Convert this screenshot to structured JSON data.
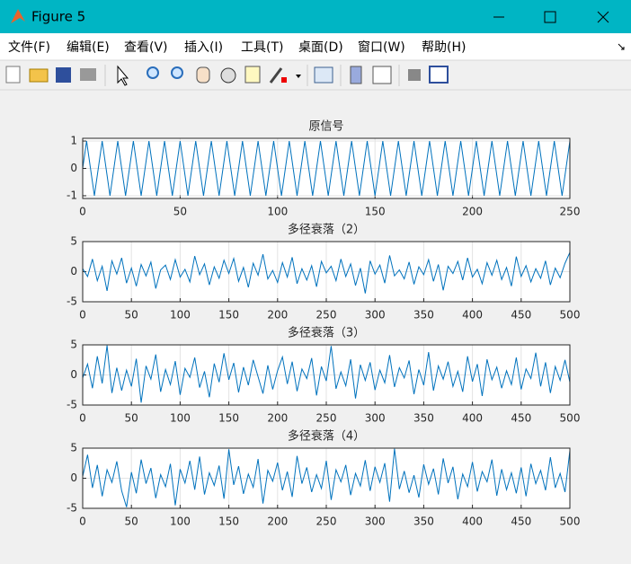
{
  "window": {
    "title": "Figure 5",
    "menu": [
      "文件(F)",
      "编辑(E)",
      "查看(V)",
      "插入(I)",
      "工具(T)",
      "桌面(D)",
      "窗口(W)",
      "帮助(H)"
    ]
  },
  "chart_data": [
    {
      "type": "line",
      "title": "原信号",
      "x": [
        0,
        2,
        4,
        6,
        8,
        10,
        12,
        14,
        16,
        18,
        20,
        22,
        24,
        26,
        28,
        30,
        32,
        34,
        36,
        38,
        40,
        42,
        44,
        46,
        48,
        50,
        52,
        54,
        56,
        58,
        60,
        62,
        64,
        66,
        68,
        70,
        72,
        74,
        76,
        78,
        80,
        82,
        84,
        86,
        88,
        90,
        92,
        94,
        96,
        98,
        100,
        102,
        104,
        106,
        108,
        110,
        112,
        114,
        116,
        118,
        120,
        122,
        124,
        126,
        128,
        130,
        132,
        134,
        136,
        138,
        140,
        142,
        144,
        146,
        148,
        150,
        152,
        154,
        156,
        158,
        160,
        162,
        164,
        166,
        168,
        170,
        172,
        174,
        176,
        178,
        180,
        182,
        184,
        186,
        188,
        190,
        192,
        194,
        196,
        198,
        200,
        202,
        204,
        206,
        208,
        210,
        212,
        214,
        216,
        218,
        220,
        222,
        224,
        226,
        228,
        230,
        232,
        234,
        236,
        238,
        240,
        242,
        244,
        246,
        248,
        250
      ],
      "series": [
        {
          "color": "#0072bd",
          "values": [
            0,
            1,
            0,
            -1,
            0,
            1,
            0,
            -1,
            0,
            1,
            0,
            -1,
            0,
            1,
            0,
            -1,
            0,
            1,
            0,
            -1,
            0,
            1,
            0,
            -1,
            0,
            1,
            0,
            -1,
            0,
            1,
            0,
            -1,
            0,
            1,
            0,
            -1,
            0,
            1,
            0,
            -1,
            0,
            1,
            0,
            -1,
            0,
            1,
            0,
            -1,
            0,
            1,
            0,
            -1,
            0,
            1,
            0,
            -1,
            0,
            1,
            0,
            -1,
            0,
            1,
            0,
            -1,
            0,
            1,
            0,
            -1,
            0,
            1,
            0,
            -1,
            0,
            1,
            0,
            -1,
            0,
            1,
            0,
            -1,
            0,
            1,
            0,
            -1,
            0,
            1,
            0,
            -1,
            0,
            1,
            0,
            -1,
            0,
            1,
            0,
            -1,
            0,
            1,
            0,
            -1,
            0,
            1,
            0,
            -1,
            0,
            1,
            0,
            -1,
            0,
            1,
            0,
            -1,
            0,
            1,
            0,
            -1,
            0,
            1,
            0,
            -1,
            0,
            1,
            0,
            -1,
            0,
            1
          ]
        }
      ],
      "xlim": [
        0,
        250
      ],
      "ylim": [
        -1.1,
        1.1
      ],
      "xticks": [
        0,
        50,
        100,
        150,
        200,
        250
      ],
      "yticks": [
        -1,
        0,
        1
      ],
      "grid": true
    },
    {
      "type": "line",
      "title": "多径衰落（2）",
      "x": [
        0,
        5,
        10,
        15,
        20,
        25,
        30,
        35,
        40,
        45,
        50,
        55,
        60,
        65,
        70,
        75,
        80,
        85,
        90,
        95,
        100,
        105,
        110,
        115,
        120,
        125,
        130,
        135,
        140,
        145,
        150,
        155,
        160,
        165,
        170,
        175,
        180,
        185,
        190,
        195,
        200,
        205,
        210,
        215,
        220,
        225,
        230,
        235,
        240,
        245,
        250,
        255,
        260,
        265,
        270,
        275,
        280,
        285,
        290,
        295,
        300,
        305,
        310,
        315,
        320,
        325,
        330,
        335,
        340,
        345,
        350,
        355,
        360,
        365,
        370,
        375,
        380,
        385,
        390,
        395,
        400,
        405,
        410,
        415,
        420,
        425,
        430,
        435,
        440,
        445,
        450,
        455,
        460,
        465,
        470,
        475,
        480,
        485,
        490,
        495,
        500
      ],
      "series": [
        {
          "color": "#0072bd",
          "values": [
            0.5,
            -0.8,
            2.1,
            -1.5,
            0.9,
            -3.2,
            1.8,
            -0.4,
            2.3,
            -1.9,
            0.6,
            -2.4,
            1.2,
            -0.7,
            1.6,
            -2.8,
            0.3,
            1.1,
            -1.3,
            2.0,
            -0.9,
            0.4,
            -1.7,
            2.6,
            -0.5,
            1.3,
            -2.2,
            0.8,
            -1.1,
            1.9,
            -0.3,
            2.2,
            -1.6,
            0.7,
            -2.6,
            1.4,
            -0.6,
            2.9,
            -1.2,
            0.2,
            -1.8,
            1.5,
            -0.9,
            2.4,
            -2.0,
            0.5,
            -1.4,
            1.0,
            -2.5,
            1.7,
            -0.2,
            0.9,
            -1.5,
            2.1,
            -0.8,
            1.3,
            -2.3,
            0.6,
            -3.6,
            1.8,
            -0.4,
            1.1,
            -1.9,
            2.7,
            -0.7,
            0.3,
            -1.2,
            1.6,
            -2.1,
            0.8,
            -0.5,
            2.0,
            -1.6,
            1.2,
            -3.1,
            0.9,
            -0.3,
            1.7,
            -1.4,
            2.3,
            -0.9,
            0.4,
            -2.0,
            1.5,
            -0.6,
            1.9,
            -1.3,
            0.7,
            -2.4,
            2.5,
            -0.8,
            1.0,
            -1.7,
            0.5,
            -1.1,
            1.8,
            -2.2,
            0.6,
            -1.0,
            1.4,
            3.2
          ]
        }
      ],
      "xlim": [
        0,
        500
      ],
      "ylim": [
        -5,
        5
      ],
      "xticks": [
        0,
        50,
        100,
        150,
        200,
        250,
        300,
        350,
        400,
        450,
        500
      ],
      "yticks": [
        -5,
        0,
        5
      ],
      "grid": true
    },
    {
      "type": "line",
      "title": "多径衰落（3）",
      "x": [
        0,
        5,
        10,
        15,
        20,
        25,
        30,
        35,
        40,
        45,
        50,
        55,
        60,
        65,
        70,
        75,
        80,
        85,
        90,
        95,
        100,
        105,
        110,
        115,
        120,
        125,
        130,
        135,
        140,
        145,
        150,
        155,
        160,
        165,
        170,
        175,
        180,
        185,
        190,
        195,
        200,
        205,
        210,
        215,
        220,
        225,
        230,
        235,
        240,
        245,
        250,
        255,
        260,
        265,
        270,
        275,
        280,
        285,
        290,
        295,
        300,
        305,
        310,
        315,
        320,
        325,
        330,
        335,
        340,
        345,
        350,
        355,
        360,
        365,
        370,
        375,
        380,
        385,
        390,
        395,
        400,
        405,
        410,
        415,
        420,
        425,
        430,
        435,
        440,
        445,
        450,
        455,
        460,
        465,
        470,
        475,
        480,
        485,
        490,
        495,
        500
      ],
      "series": [
        {
          "color": "#0072bd",
          "values": [
            -0.5,
            1.8,
            -2.2,
            3.1,
            -1.4,
            4.9,
            -3.0,
            1.2,
            -2.6,
            0.8,
            -1.9,
            2.7,
            -4.6,
            1.5,
            -0.7,
            3.4,
            -2.8,
            0.9,
            -1.6,
            2.3,
            -3.3,
            1.1,
            -0.4,
            2.9,
            -2.1,
            0.6,
            -3.7,
            1.9,
            -1.2,
            3.6,
            -0.8,
            2.0,
            -2.9,
            1.3,
            -1.7,
            2.5,
            -0.3,
            -3.1,
            1.6,
            -2.4,
            0.7,
            3.0,
            -1.5,
            2.2,
            -2.7,
            1.0,
            -0.6,
            2.8,
            -3.4,
            1.4,
            -1.0,
            4.8,
            -2.3,
            0.5,
            -1.8,
            2.6,
            -3.9,
            1.7,
            -0.9,
            2.1,
            -2.5,
            0.8,
            -1.3,
            3.3,
            -2.0,
            1.2,
            -0.5,
            2.4,
            -3.2,
            0.9,
            -1.7,
            3.8,
            -2.6,
            1.5,
            -0.7,
            2.2,
            -1.9,
            0.6,
            -2.8,
            3.1,
            -1.1,
            1.8,
            -3.5,
            2.6,
            -0.8,
            1.3,
            -2.2,
            0.7,
            -1.6,
            2.9,
            -2.4,
            1.0,
            -0.6,
            3.7,
            -1.9,
            2.1,
            -3.0,
            1.4,
            -0.9,
            2.5,
            -1.2
          ]
        }
      ],
      "xlim": [
        0,
        500
      ],
      "ylim": [
        -5,
        5
      ],
      "xticks": [
        0,
        50,
        100,
        150,
        200,
        250,
        300,
        350,
        400,
        450,
        500
      ],
      "yticks": [
        -5,
        0,
        5
      ],
      "grid": true
    },
    {
      "type": "line",
      "title": "多径衰落（4）",
      "x": [
        0,
        5,
        10,
        15,
        20,
        25,
        30,
        35,
        40,
        45,
        50,
        55,
        60,
        65,
        70,
        75,
        80,
        85,
        90,
        95,
        100,
        105,
        110,
        115,
        120,
        125,
        130,
        135,
        140,
        145,
        150,
        155,
        160,
        165,
        170,
        175,
        180,
        185,
        190,
        195,
        200,
        205,
        210,
        215,
        220,
        225,
        230,
        235,
        240,
        245,
        250,
        255,
        260,
        265,
        270,
        275,
        280,
        285,
        290,
        295,
        300,
        305,
        310,
        315,
        320,
        325,
        330,
        335,
        340,
        345,
        350,
        355,
        360,
        365,
        370,
        375,
        380,
        385,
        390,
        395,
        400,
        405,
        410,
        415,
        420,
        425,
        430,
        435,
        440,
        445,
        450,
        455,
        460,
        465,
        470,
        475,
        480,
        485,
        490,
        495,
        500
      ],
      "series": [
        {
          "color": "#0072bd",
          "values": [
            0.3,
            3.9,
            -1.6,
            2.2,
            -3.0,
            1.4,
            -0.7,
            2.8,
            -2.1,
            -4.8,
            1.0,
            -2.5,
            3.1,
            -0.9,
            1.7,
            -3.3,
            0.6,
            -1.4,
            2.4,
            -4.5,
            1.5,
            -0.8,
            2.9,
            -1.9,
            3.6,
            -2.7,
            0.9,
            -1.2,
            2.1,
            -3.4,
            4.8,
            -1.1,
            2.0,
            -2.6,
            0.7,
            -1.5,
            3.2,
            -4.2,
            1.3,
            -0.5,
            2.6,
            -2.0,
            1.1,
            -3.1,
            3.7,
            -0.9,
            1.8,
            -2.3,
            0.6,
            -1.7,
            2.9,
            -3.6,
            1.4,
            -0.6,
            2.2,
            -2.8,
            0.8,
            -1.3,
            3.0,
            -2.1,
            1.9,
            -0.7,
            2.5,
            -3.9,
            4.9,
            -1.8,
            1.2,
            -2.4,
            0.5,
            -3.2,
            2.3,
            -1.0,
            1.6,
            -2.7,
            3.3,
            -0.8,
            1.9,
            -3.5,
            0.7,
            -1.4,
            2.7,
            -2.2,
            1.1,
            -0.6,
            3.1,
            -2.9,
            1.5,
            -1.9,
            0.9,
            -2.5,
            1.8,
            -3.0,
            2.4,
            -0.9,
            1.3,
            -2.0,
            3.5,
            -1.6,
            0.8,
            -2.3,
            4.6
          ]
        }
      ],
      "xlim": [
        0,
        500
      ],
      "ylim": [
        -5,
        5
      ],
      "xticks": [
        0,
        50,
        100,
        150,
        200,
        250,
        300,
        350,
        400,
        450,
        500
      ],
      "yticks": [
        -5,
        0,
        5
      ],
      "grid": true
    }
  ]
}
